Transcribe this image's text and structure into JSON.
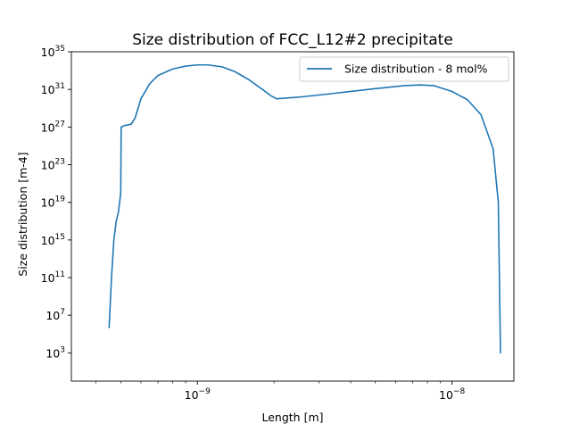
{
  "chart_data": {
    "type": "line",
    "title": "Size distribution of FCC_L12#2 precipitate",
    "xlabel": "Length [m]",
    "ylabel": "Size distribution [m-4]",
    "xscale": "log",
    "yscale": "log",
    "xlim": [
      3.2e-10,
      1.75e-08
    ],
    "ylim": [
      1.0,
      1e+35
    ],
    "grid": false,
    "legend_position": "top-right",
    "series": [
      {
        "name": "Size distribution - 8 mol%",
        "color": "#1f77b4",
        "x": [
          4.5e-10,
          4.6e-10,
          4.7e-10,
          4.8e-10,
          4.9e-10,
          5e-10,
          5.02e-10,
          5.2e-10,
          5.5e-10,
          5.7e-10,
          6e-10,
          6.5e-10,
          7e-10,
          8e-10,
          9e-10,
          1e-09,
          1.1e-09,
          1.25e-09,
          1.4e-09,
          1.6e-09,
          1.8e-09,
          1.95e-09,
          2.05e-09,
          2.5e-09,
          3.5e-09,
          5e-09,
          6.5e-09,
          7.5e-09,
          8.5e-09,
          1e-08,
          1.15e-08,
          1.3e-08,
          1.45e-08,
          1.52e-08,
          1.55e-08
        ],
        "y": [
          500000.0,
          100000000000.0,
          1000000000000000.0,
          1e+17,
          1e+18,
          1e+20,
          1e+27,
          1.5e+27,
          2e+27,
          1e+28,
          1e+30,
          4e+31,
          3e+32,
          1.5e+33,
          3e+33,
          4e+33,
          4e+33,
          2.5e+33,
          8e+32,
          1e+32,
          1e+31,
          2e+30,
          1e+30,
          1.5e+30,
          4e+30,
          1.2e+31,
          2.5e+31,
          3e+31,
          2.5e+31,
          6e+30,
          8e+29,
          2e+28,
          5e+24,
          1e+19,
          1000.0
        ]
      }
    ],
    "x_ticks": [
      {
        "value": 1e-09,
        "base": "10",
        "exp": "−9"
      },
      {
        "value": 1e-08,
        "base": "10",
        "exp": "−8"
      }
    ],
    "y_ticks": [
      {
        "value": 1000.0,
        "base": "10",
        "exp": "3"
      },
      {
        "value": 10000000.0,
        "base": "10",
        "exp": "7"
      },
      {
        "value": 100000000000.0,
        "base": "10",
        "exp": "11"
      },
      {
        "value": 1000000000000000.0,
        "base": "10",
        "exp": "15"
      },
      {
        "value": 1e+19,
        "base": "10",
        "exp": "19"
      },
      {
        "value": 1e+23,
        "base": "10",
        "exp": "23"
      },
      {
        "value": 1e+27,
        "base": "10",
        "exp": "27"
      },
      {
        "value": 1e+31,
        "base": "10",
        "exp": "31"
      },
      {
        "value": 1e+35,
        "base": "10",
        "exp": "35"
      }
    ]
  }
}
